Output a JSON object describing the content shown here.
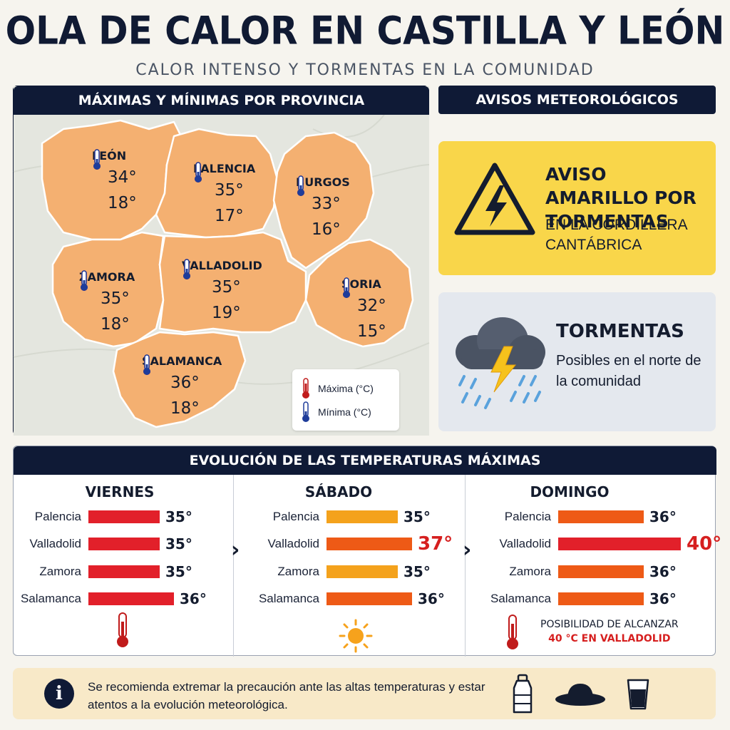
{
  "header": {
    "title": "OLA DE CALOR EN CASTILLA Y LEÓN",
    "subtitle": "CALOR INTENSO Y TORMENTAS EN LA COMUNIDAD"
  },
  "map": {
    "header": "MÁXIMAS Y MÍNIMAS POR PROVINCIA",
    "provinces": [
      {
        "name": "LEÓN",
        "max": "34°",
        "min": "18°"
      },
      {
        "name": "PALENCIA",
        "max": "35°",
        "min": "17°"
      },
      {
        "name": "BURGOS",
        "max": "33°",
        "min": "16°"
      },
      {
        "name": "ZAMORA",
        "max": "35°",
        "min": "18°"
      },
      {
        "name": "VALLADOLID",
        "max": "35°",
        "min": "19°"
      },
      {
        "name": "SORIA",
        "max": "32°",
        "min": "15°"
      },
      {
        "name": "SALAMANCA",
        "max": "36°",
        "min": "18°"
      }
    ],
    "legend": {
      "max_label": "Máxima (°C)",
      "min_label": "Mínima (°C)"
    }
  },
  "warnings": {
    "header": "AVISOS METEOROLÓGICOS",
    "yellow": {
      "title": "AVISO AMARILLO POR TORMENTAS",
      "subtitle": "EN LA CORDILLERA CANTÁBRICA",
      "icon": "lightning-warning-icon"
    },
    "storms": {
      "title": "TORMENTAS",
      "subtitle": "Posibles en el norte de la comunidad",
      "icon": "storm-cloud-icon"
    }
  },
  "evolution": {
    "header": "EVOLUCIÓN DE LAS TEMPERATURAS MÁXIMAS",
    "days": [
      {
        "name": "VIERNES",
        "rows": [
          {
            "city": "Palencia",
            "value": 35,
            "label": "35°"
          },
          {
            "city": "Valladolid",
            "value": 35,
            "label": "35°"
          },
          {
            "city": "Zamora",
            "value": 35,
            "label": "35°"
          },
          {
            "city": "Salamanca",
            "value": 36,
            "label": "36°"
          }
        ],
        "icon": "thermometer-icon"
      },
      {
        "name": "SÁBADO",
        "rows": [
          {
            "city": "Palencia",
            "value": 35,
            "label": "35°"
          },
          {
            "city": "Valladolid",
            "value": 37,
            "label": "37°"
          },
          {
            "city": "Zamora",
            "value": 35,
            "label": "35°"
          },
          {
            "city": "Salamanca",
            "value": 36,
            "label": "36°"
          }
        ],
        "icon": "sun-icon"
      },
      {
        "name": "DOMINGO",
        "rows": [
          {
            "city": "Palencia",
            "value": 36,
            "label": "36°"
          },
          {
            "city": "Valladolid",
            "value": 40,
            "label": "40°"
          },
          {
            "city": "Zamora",
            "value": 36,
            "label": "36°"
          },
          {
            "city": "Salamanca",
            "value": 36,
            "label": "36°"
          }
        ],
        "icon": "thermometer-icon",
        "note_line1": "POSIBILIDAD DE ALCANZAR",
        "note_line2": "40 °C EN VALLADOLID"
      }
    ]
  },
  "advice": {
    "text": "Se recomienda extremar la precaución ante las altas temperaturas y estar atentos a la evolución meteorológica.",
    "icons": [
      "info-icon",
      "water-bottle-icon",
      "sun-hat-icon",
      "water-glass-icon"
    ]
  },
  "colors": {
    "navy": "#0f1a36",
    "map_orange": "#f4b071",
    "warning_yellow": "#f9d64a",
    "hot_red": "#d61f1f",
    "bar_red": "#e2202a",
    "bar_orange": "#f4a21c",
    "bar_deep_orange": "#ee5a16"
  }
}
